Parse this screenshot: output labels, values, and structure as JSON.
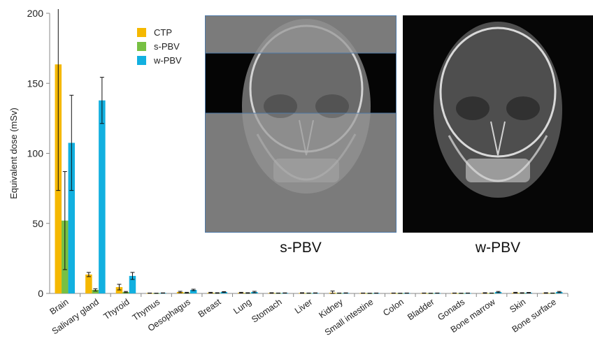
{
  "chart_data": {
    "type": "bar",
    "ylabel": "Equivalent dose (mSv)",
    "ylim": [
      0,
      200
    ],
    "yticks": [
      0,
      50,
      100,
      150,
      200
    ],
    "legend_position": "top-center",
    "categories": [
      "Brain",
      "Salivary gland",
      "Thyroid",
      "Thymus",
      "Oesophagus",
      "Breast",
      "Lung",
      "Stomach",
      "Liver",
      "Kidney",
      "Small intestine",
      "Colon",
      "Bladder",
      "Gonads",
      "Bone marrow",
      "Skin",
      "Bone surface"
    ],
    "series": [
      {
        "name": "CTP",
        "color": "#f5b800",
        "values": [
          163.5,
          13.5,
          4.5,
          0.2,
          1.0,
          0.5,
          0.5,
          0.3,
          0.3,
          0.5,
          0.2,
          0.2,
          0.2,
          0.2,
          0.3,
          0.5,
          0.3
        ],
        "errors": [
          90,
          1.5,
          2,
          0.1,
          0.5,
          0.3,
          0.3,
          0.2,
          0.2,
          1.2,
          0.1,
          0.1,
          0.1,
          0.1,
          0.2,
          0.3,
          0.2
        ]
      },
      {
        "name": "s-PBV",
        "color": "#77c043",
        "values": [
          52,
          2.5,
          1.0,
          0.1,
          0.5,
          0.3,
          0.3,
          0.2,
          0.2,
          0.2,
          0.1,
          0.1,
          0.1,
          0.1,
          0.2,
          0.3,
          0.2
        ],
        "errors": [
          35,
          0.8,
          0.4,
          0.1,
          0.3,
          0.2,
          0.2,
          0.1,
          0.1,
          0.1,
          0.1,
          0.1,
          0.1,
          0.1,
          0.1,
          0.2,
          0.1
        ]
      },
      {
        "name": "w-PBV",
        "color": "#12b0e0",
        "values": [
          107.5,
          137.8,
          12.5,
          0.3,
          2.5,
          1.0,
          1.0,
          0.3,
          0.3,
          0.3,
          0.2,
          0.2,
          0.2,
          0.2,
          1.0,
          0.5,
          1.0
        ],
        "errors": [
          34,
          16.5,
          2.5,
          0.1,
          0.5,
          0.3,
          0.5,
          0.1,
          0.1,
          0.1,
          0.1,
          0.1,
          0.1,
          0.1,
          0.4,
          0.2,
          0.4
        ]
      }
    ]
  },
  "insets": {
    "left_caption": "s-PBV",
    "right_caption": "w-PBV"
  }
}
